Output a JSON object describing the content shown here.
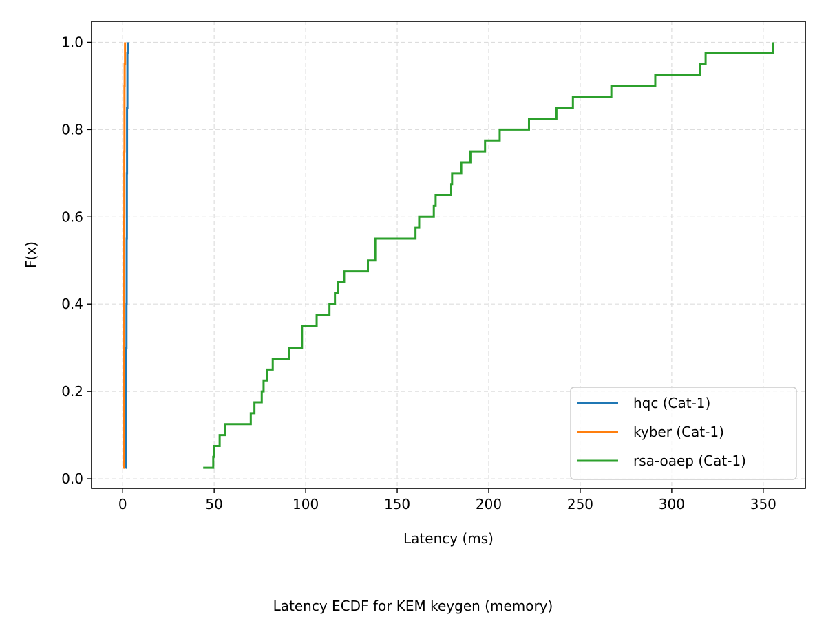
{
  "chart_data": {
    "type": "line",
    "subtype": "ecdf-step",
    "caption": "Latency ECDF for KEM keygen (memory)",
    "xlabel": "Latency (ms)",
    "ylabel": "F(x)",
    "xlim": [
      -17,
      373
    ],
    "ylim": [
      -0.022,
      1.048
    ],
    "x_ticks": [
      0,
      50,
      100,
      150,
      200,
      250,
      300,
      350
    ],
    "y_ticks": [
      0.0,
      0.2,
      0.4,
      0.6,
      0.8,
      1.0
    ],
    "x_tick_labels": [
      "0",
      "50",
      "100",
      "150",
      "200",
      "250",
      "300",
      "350"
    ],
    "y_tick_labels": [
      "0.0",
      "0.2",
      "0.4",
      "0.6",
      "0.8",
      "1.0"
    ],
    "grid": true,
    "legend_position": "lower-right",
    "series": [
      {
        "name": "hqc (Cat-1)",
        "color": "#1f77b4",
        "x": [
          1.6,
          1.7,
          1.9,
          2.0,
          2.1,
          2.2,
          2.3,
          2.4,
          2.6,
          2.8
        ],
        "y": [
          0.025,
          0.1,
          0.2,
          0.3,
          0.4,
          0.55,
          0.7,
          0.85,
          0.975,
          1.0
        ]
      },
      {
        "name": "kyber (Cat-1)",
        "color": "#ff7f0e",
        "x": [
          0.4,
          0.5,
          0.6,
          0.7,
          0.8,
          0.9,
          1.0,
          1.1,
          1.3
        ],
        "y": [
          0.025,
          0.15,
          0.3,
          0.45,
          0.6,
          0.75,
          0.9,
          0.95,
          1.0
        ]
      },
      {
        "name": "rsa-oaep (Cat-1)",
        "color": "#2ca02c",
        "x": [
          44,
          49.5,
          50,
          53,
          56,
          70,
          72,
          76,
          77,
          79,
          82,
          91,
          98,
          106,
          113,
          116,
          117.5,
          121,
          134,
          138,
          160,
          162,
          170,
          171,
          179.5,
          180,
          185,
          190,
          198,
          206,
          222,
          237,
          246,
          267,
          291,
          315.5,
          316.5,
          318.5,
          355.5
        ],
        "y": [
          0.025,
          0.05,
          0.075,
          0.1,
          0.125,
          0.15,
          0.175,
          0.2,
          0.225,
          0.25,
          0.275,
          0.3,
          0.35,
          0.375,
          0.4,
          0.425,
          0.45,
          0.475,
          0.5,
          0.55,
          0.575,
          0.6,
          0.625,
          0.65,
          0.675,
          0.7,
          0.725,
          0.75,
          0.775,
          0.8,
          0.825,
          0.85,
          0.875,
          0.9,
          0.925,
          0.95,
          0.95,
          0.975,
          1.0
        ]
      }
    ]
  }
}
